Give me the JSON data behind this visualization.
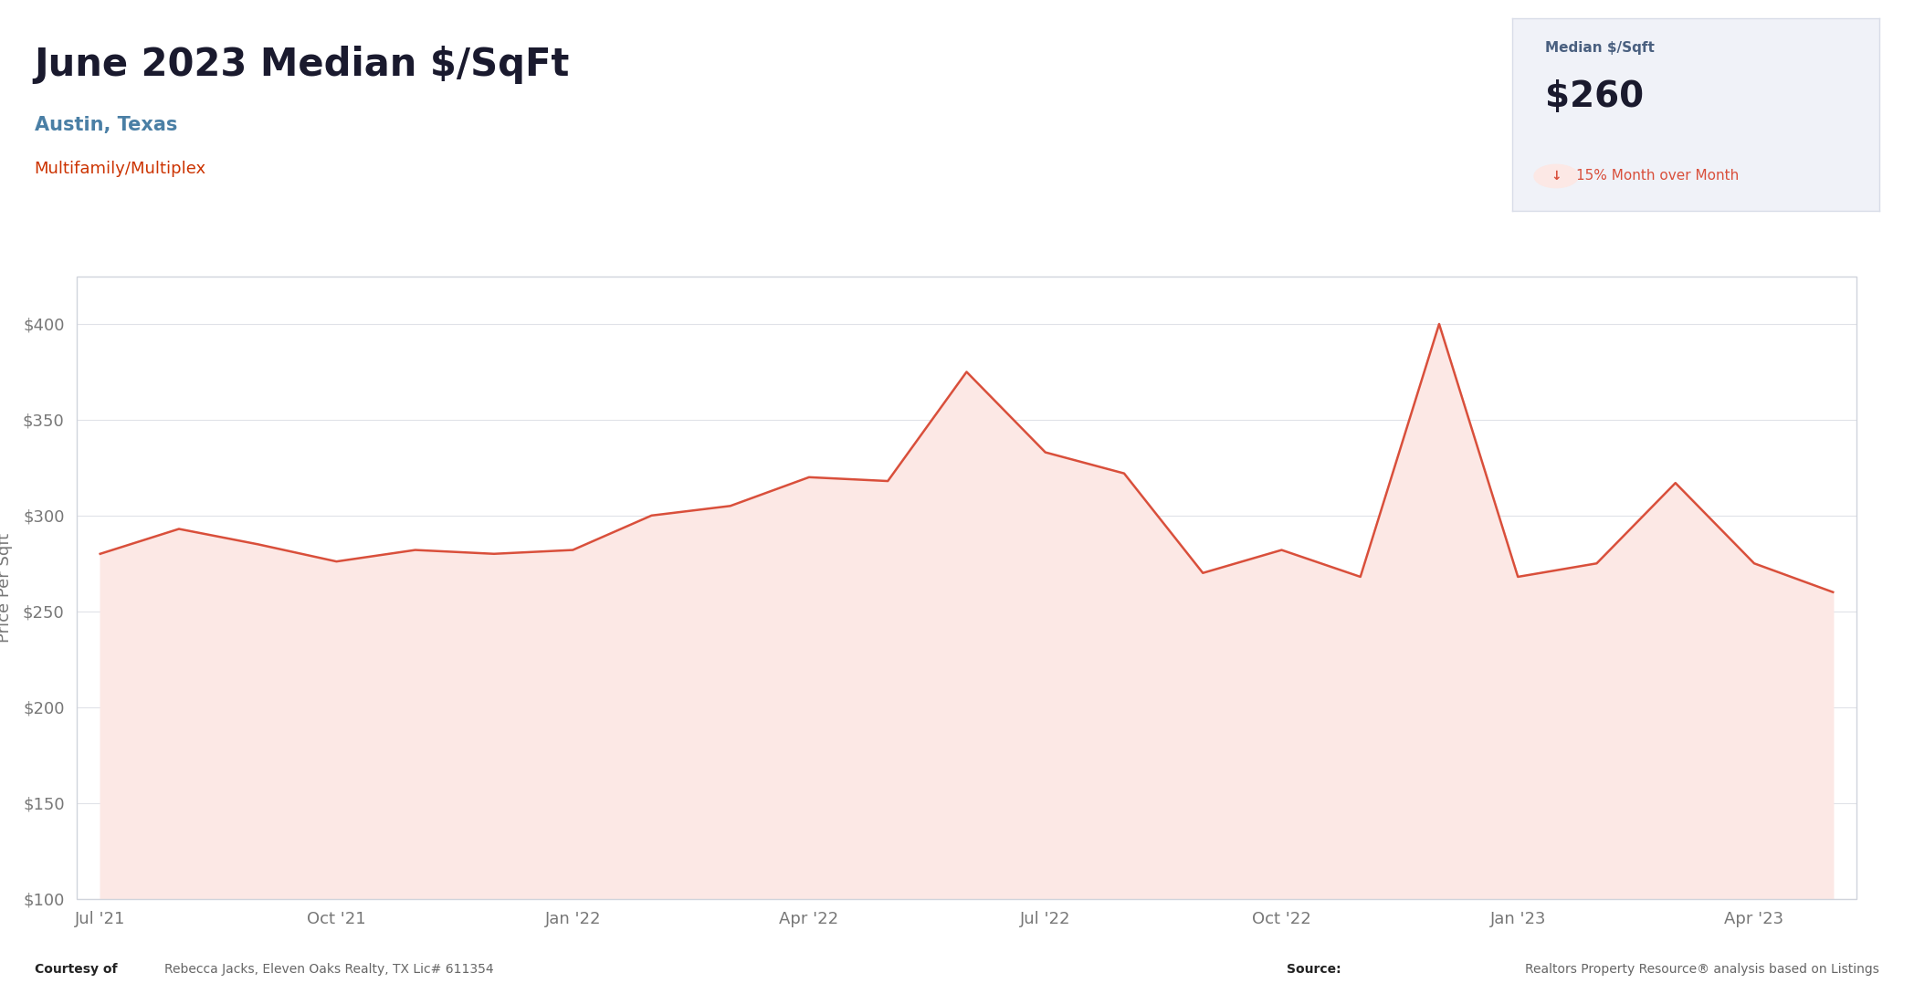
{
  "title": "June 2023 Median $/SqFt",
  "subtitle1": "Austin, Texas",
  "subtitle2": "Multifamily/Multiplex",
  "stat_label": "Median $/Sqft",
  "stat_value": "$260",
  "stat_change": "15% Month over Month",
  "ylabel": "Price Per Sqft",
  "x_labels": [
    "Jul '21",
    "Oct '21",
    "Jan '22",
    "Apr '22",
    "Jul '22",
    "Oct '22",
    "Jan '23",
    "Apr '23"
  ],
  "x_tick_positions": [
    0,
    3,
    6,
    9,
    12,
    15,
    18,
    21
  ],
  "data_x": [
    0,
    1,
    2,
    3,
    4,
    5,
    6,
    7,
    8,
    9,
    10,
    11,
    12,
    13,
    14,
    15,
    16,
    17,
    18,
    19,
    20,
    21,
    22
  ],
  "data_y": [
    280,
    293,
    285,
    276,
    282,
    280,
    282,
    300,
    305,
    320,
    318,
    375,
    333,
    322,
    270,
    282,
    268,
    400,
    268,
    275,
    317,
    275,
    260
  ],
  "line_color": "#d94f3b",
  "fill_color": "#fce8e5",
  "background_color": "#ffffff",
  "chart_bg": "#ffffff",
  "panel_bg": "#f0f2f8",
  "panel_border": "#d8dce8",
  "ylim": [
    100,
    425
  ],
  "yticks": [
    100,
    150,
    200,
    250,
    300,
    350,
    400
  ],
  "grid_color": "#e0e2e8",
  "title_color": "#1a1a2e",
  "subtitle1_color": "#4a7fa5",
  "subtitle2_color": "#cc3300",
  "stat_label_color": "#4a6080",
  "stat_value_color": "#1a1a2e",
  "stat_change_color": "#d94f3b",
  "tick_color": "#777777",
  "chart_border_color": "#d0d4dc",
  "footer_bold_color": "#222222",
  "footer_normal_color": "#666666"
}
